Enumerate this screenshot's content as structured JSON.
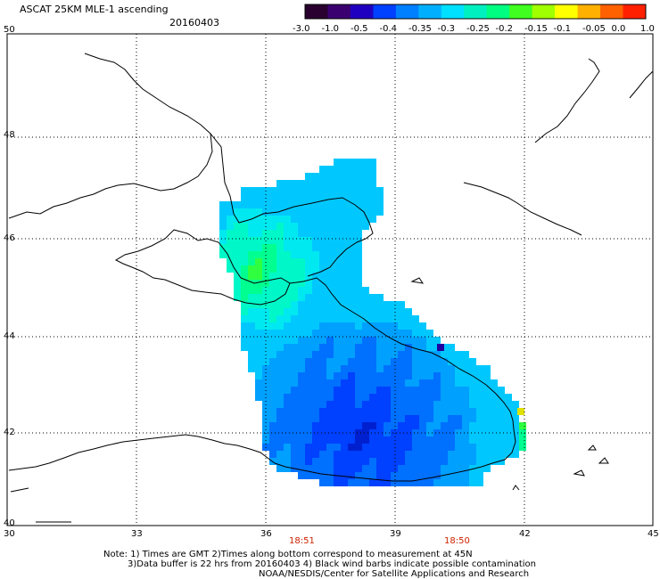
{
  "header": {
    "title": "ASCAT 25KM MLE-1 ascending",
    "date": "20160403",
    "top_left_lat": "50"
  },
  "colorbar": {
    "colors": [
      "#2a0030",
      "#3a0070",
      "#2000c0",
      "#0040ff",
      "#0080ff",
      "#00b0ff",
      "#00e0ff",
      "#00f0c0",
      "#00ff80",
      "#40ff20",
      "#a0ff00",
      "#ffff00",
      "#ffb000",
      "#ff6000",
      "#ff2000"
    ],
    "labels": [
      "-3.0",
      "-1.0",
      "-0.5",
      "-0.4",
      "-0.35",
      "-0.3",
      "-0.25",
      "-0.2",
      "-0.15",
      "-0.1",
      "-0.05",
      "0.0",
      "1.0"
    ]
  },
  "axes": {
    "lat_labels": [
      "48",
      "46",
      "44",
      "42",
      "40"
    ],
    "lon_labels": [
      "30",
      "33",
      "36",
      "39",
      "42",
      "45"
    ]
  },
  "times": {
    "t1": "18:51",
    "t2": "18:50"
  },
  "notes": {
    "line1": "Note: 1) Times are GMT 2)Times along bottom correspond to measurement at 45N",
    "line2": "3)Data buffer is 22 hrs from 20160403 4) Black wind barbs indicate possible contamination",
    "line3": "NOAA/NESDIS/Center for Satellite Applications and Research"
  }
}
